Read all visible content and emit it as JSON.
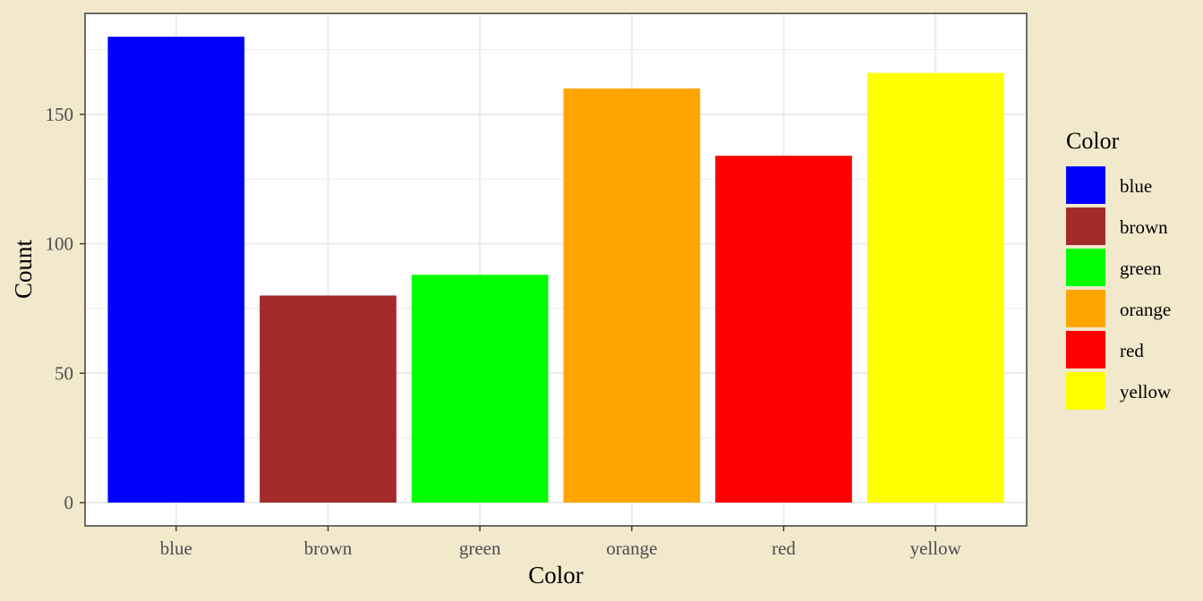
{
  "chart_data": {
    "type": "bar",
    "categories": [
      "blue",
      "brown",
      "green",
      "orange",
      "red",
      "yellow"
    ],
    "values": [
      180,
      80,
      88,
      160,
      134,
      166
    ],
    "colors": [
      "#0000ff",
      "#a52a2a",
      "#00ff00",
      "#ffa500",
      "#ff0000",
      "#ffff00"
    ],
    "xlabel": "Color",
    "ylabel": "Count",
    "ylim": [
      -9,
      189
    ],
    "yticks": [
      0,
      50,
      100,
      150
    ],
    "ytick_labels": [
      "0",
      "50",
      "100",
      "150"
    ],
    "grid": true,
    "legend": {
      "title": "Color",
      "position": "right",
      "items": [
        "blue",
        "brown",
        "green",
        "orange",
        "red",
        "yellow"
      ]
    },
    "background": "#f2e8cc",
    "panel_background": "#ffffff"
  }
}
